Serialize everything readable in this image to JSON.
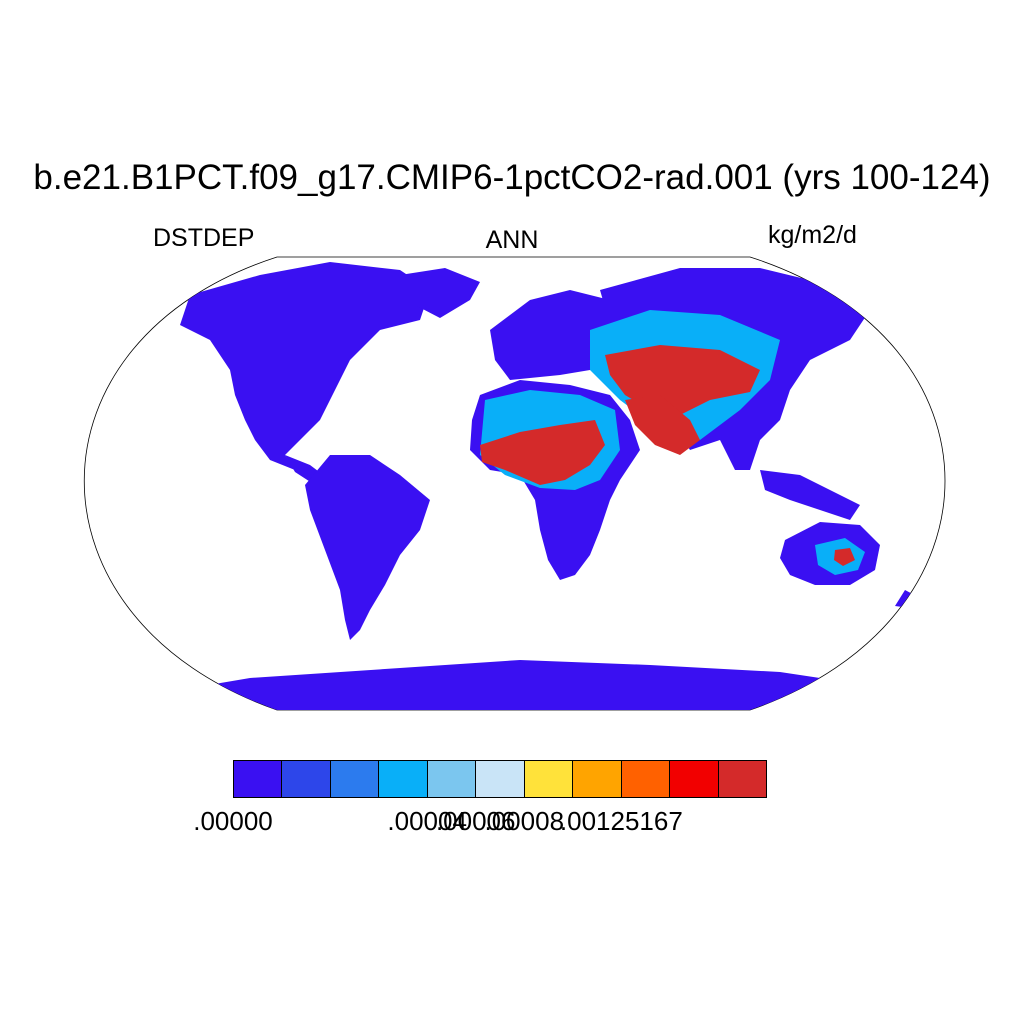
{
  "title": "b.e21.B1PCT.f09_g17.CMIP6-1pctCO2-rad.001 (yrs 100-124)",
  "variable": "DSTDEP",
  "period": "ANN",
  "units": "kg/m2/d",
  "colorbar": {
    "colors": [
      "#3a10f2",
      "#2d46ea",
      "#2c7bee",
      "#09aff8",
      "#7bc6ef",
      "#c9e4f7",
      "#ffe23a",
      "#ffa400",
      "#ff6100",
      "#f20000",
      "#d42a2a"
    ],
    "tick_labels": [
      {
        "text": ".00000",
        "boundary": 0
      },
      {
        "text": ".00004",
        "boundary": 4
      },
      {
        "text": ".00006",
        "boundary": 5
      },
      {
        "text": ".00008",
        "boundary": 6
      },
      {
        "text": ".00125167",
        "boundary": 8
      }
    ]
  },
  "colors": {
    "ocean": "#ffffff",
    "low": "#3a10f2",
    "medium": "#09aff8",
    "high": "#d42a2a"
  }
}
